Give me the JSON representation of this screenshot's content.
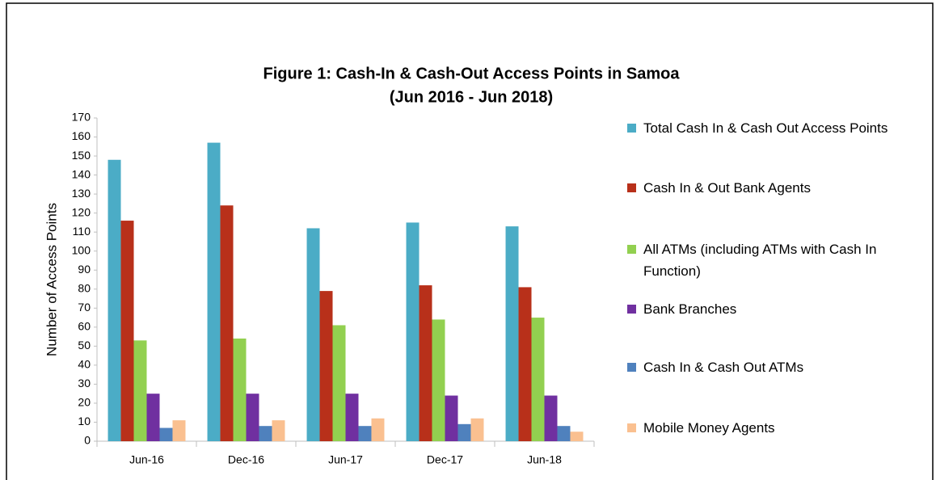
{
  "chart_data": {
    "type": "bar",
    "title": [
      "Figure 1:  Cash-In & Cash-Out Access Points in Samoa",
      "(Jun 2016 - Jun 2018)"
    ],
    "y_axis_label": "Number of Access Points",
    "categories": [
      "Jun-16",
      "Dec-16",
      "Jun-17",
      "Dec-17",
      "Jun-18"
    ],
    "series": [
      {
        "name": "Total Cash In & Cash Out Access Points",
        "color": "#4bacc6",
        "values": [
          148,
          157,
          112,
          115,
          113
        ]
      },
      {
        "name": "Cash In & Out Bank Agents",
        "color": "#b8301a",
        "values": [
          116,
          124,
          79,
          82,
          81
        ]
      },
      {
        "name": "All ATMs (including ATMs with Cash In Function)",
        "color": "#92d050",
        "values": [
          53,
          54,
          61,
          64,
          65
        ]
      },
      {
        "name": "Bank Branches",
        "color": "#7030a0",
        "values": [
          25,
          25,
          25,
          24,
          24
        ]
      },
      {
        "name": "Cash In & Cash Out ATMs",
        "color": "#4f81bd",
        "values": [
          7,
          8,
          8,
          9,
          8
        ]
      },
      {
        "name": "Mobile Money Agents",
        "color": "#fac090",
        "values": [
          11,
          11,
          12,
          12,
          5
        ]
      }
    ],
    "ylim": [
      0,
      170
    ],
    "yticks": [
      0,
      10,
      20,
      30,
      40,
      50,
      60,
      70,
      80,
      90,
      100,
      110,
      120,
      130,
      140,
      150,
      160,
      170
    ],
    "grid": false,
    "legend": "right"
  }
}
